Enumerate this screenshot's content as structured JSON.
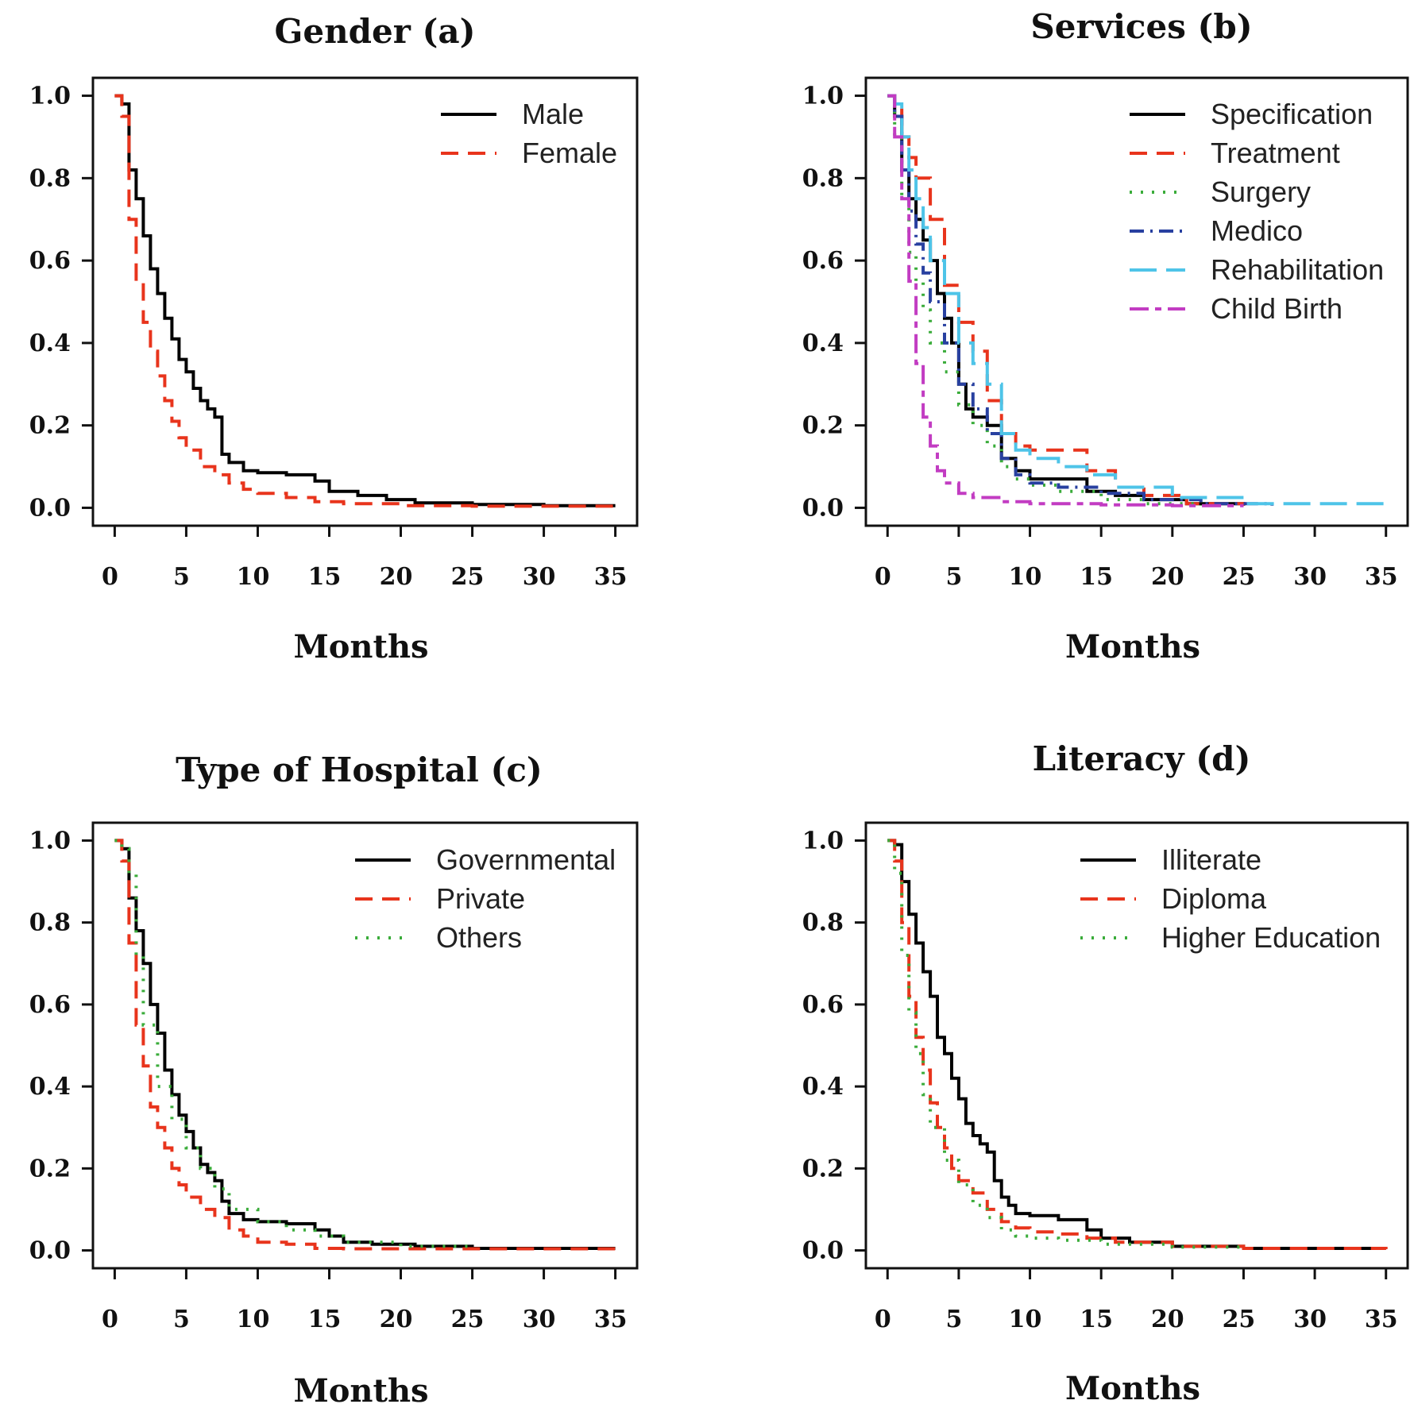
{
  "chart_data": [
    {
      "type": "line",
      "title": "Gender (a)",
      "xlabel": "Months",
      "ylabel": "",
      "xlim": [
        0,
        35
      ],
      "ylim": [
        0,
        1
      ],
      "xticks": [
        "0",
        "5",
        "10",
        "15",
        "20",
        "25",
        "30",
        "35"
      ],
      "yticks": [
        "0.0",
        "0.2",
        "0.4",
        "0.6",
        "0.8",
        "1.0"
      ],
      "legend_position": "top-right",
      "series": [
        {
          "name": "Male",
          "color": "#000000",
          "dash": "solid",
          "x": [
            0,
            0.5,
            1,
            1.5,
            2,
            2.5,
            3,
            3.5,
            4,
            4.5,
            5,
            5.5,
            6,
            6.5,
            7,
            7.5,
            8,
            9,
            10,
            12,
            14,
            15,
            17,
            19,
            21,
            25,
            30,
            35
          ],
          "y": [
            1.0,
            0.98,
            0.82,
            0.75,
            0.66,
            0.58,
            0.52,
            0.46,
            0.41,
            0.36,
            0.33,
            0.29,
            0.26,
            0.24,
            0.22,
            0.13,
            0.11,
            0.09,
            0.085,
            0.08,
            0.065,
            0.04,
            0.03,
            0.02,
            0.012,
            0.008,
            0.005,
            0.005
          ]
        },
        {
          "name": "Female",
          "color": "#e8341c",
          "dash": "dashed",
          "x": [
            0,
            0.5,
            1,
            1.5,
            2,
            2.5,
            3,
            3.5,
            4,
            4.5,
            5,
            6,
            7,
            8,
            9,
            10,
            12,
            14,
            16,
            20,
            25,
            35
          ],
          "y": [
            1.0,
            0.95,
            0.7,
            0.55,
            0.45,
            0.38,
            0.32,
            0.26,
            0.21,
            0.17,
            0.14,
            0.1,
            0.08,
            0.06,
            0.045,
            0.035,
            0.025,
            0.015,
            0.01,
            0.005,
            0.004,
            0.003
          ]
        }
      ]
    },
    {
      "type": "line",
      "title": "Services (b)",
      "xlabel": "Months",
      "ylabel": "",
      "xlim": [
        0,
        35
      ],
      "ylim": [
        0,
        1
      ],
      "xticks": [
        "0",
        "5",
        "10",
        "15",
        "20",
        "25",
        "30",
        "35"
      ],
      "yticks": [
        "0.0",
        "0.2",
        "0.4",
        "0.6",
        "0.8",
        "1.0"
      ],
      "legend_position": "top-right",
      "series": [
        {
          "name": "Specification",
          "color": "#000000",
          "dash": "solid",
          "x": [
            0,
            0.5,
            1,
            1.5,
            2,
            2.5,
            3,
            3.5,
            4,
            4.5,
            5,
            5.5,
            6,
            7,
            8,
            9,
            10,
            12,
            14,
            16,
            18,
            21,
            25
          ],
          "y": [
            1.0,
            0.95,
            0.82,
            0.75,
            0.7,
            0.65,
            0.6,
            0.52,
            0.46,
            0.4,
            0.3,
            0.24,
            0.22,
            0.2,
            0.12,
            0.09,
            0.07,
            0.07,
            0.04,
            0.03,
            0.02,
            0.01,
            0.005
          ]
        },
        {
          "name": "Treatment",
          "color": "#e8341c",
          "dash": "dashed",
          "x": [
            0,
            0.5,
            1,
            1.5,
            2,
            3,
            4,
            5,
            6,
            7,
            8,
            9,
            10,
            12,
            14,
            16,
            18,
            21,
            25
          ],
          "y": [
            1.0,
            0.98,
            0.9,
            0.85,
            0.8,
            0.7,
            0.54,
            0.45,
            0.38,
            0.26,
            0.18,
            0.15,
            0.14,
            0.14,
            0.09,
            0.05,
            0.03,
            0.01,
            0.005
          ]
        },
        {
          "name": "Surgery",
          "color": "#3aac3a",
          "dash": "dotted",
          "x": [
            0,
            0.5,
            1,
            1.5,
            2,
            2.5,
            3,
            4,
            5,
            6,
            7,
            8,
            9,
            10,
            12,
            15,
            18,
            22
          ],
          "y": [
            1.0,
            0.9,
            0.75,
            0.62,
            0.55,
            0.48,
            0.4,
            0.33,
            0.25,
            0.2,
            0.15,
            0.1,
            0.07,
            0.055,
            0.04,
            0.02,
            0.01,
            0.005
          ]
        },
        {
          "name": "Medico",
          "color": "#2840a0",
          "dash": "dashdot",
          "x": [
            0,
            0.5,
            1,
            1.5,
            2,
            2.5,
            3,
            4,
            5,
            6,
            7,
            8,
            9,
            10,
            12,
            15,
            18,
            22,
            27
          ],
          "y": [
            1.0,
            0.95,
            0.82,
            0.72,
            0.64,
            0.57,
            0.5,
            0.4,
            0.3,
            0.24,
            0.18,
            0.12,
            0.08,
            0.06,
            0.05,
            0.035,
            0.02,
            0.01,
            0.005
          ]
        },
        {
          "name": "Rehabilitation",
          "color": "#4ec4e8",
          "dash": "longdash",
          "x": [
            0,
            0.5,
            1,
            1.5,
            2,
            2.5,
            3,
            4,
            5,
            6,
            7,
            8,
            9,
            10,
            12,
            14,
            16,
            20,
            25,
            35
          ],
          "y": [
            1.0,
            0.98,
            0.9,
            0.82,
            0.75,
            0.68,
            0.6,
            0.52,
            0.4,
            0.35,
            0.3,
            0.18,
            0.14,
            0.12,
            0.1,
            0.08,
            0.05,
            0.025,
            0.01,
            0.005
          ]
        },
        {
          "name": "Child Birth",
          "color": "#c23cc2",
          "dash": "twodash",
          "x": [
            0,
            0.5,
            1,
            1.5,
            2,
            2.5,
            3,
            3.5,
            4,
            5,
            6,
            8,
            10,
            15,
            20,
            25
          ],
          "y": [
            1.0,
            0.9,
            0.75,
            0.55,
            0.35,
            0.22,
            0.15,
            0.09,
            0.06,
            0.035,
            0.025,
            0.015,
            0.01,
            0.007,
            0.005,
            0.005
          ]
        }
      ]
    },
    {
      "type": "line",
      "title": "Type of Hospital (c)",
      "xlabel": "Months",
      "ylabel": "",
      "xlim": [
        0,
        35
      ],
      "ylim": [
        0,
        1
      ],
      "xticks": [
        "0",
        "5",
        "10",
        "15",
        "20",
        "25",
        "30",
        "35"
      ],
      "yticks": [
        "0.0",
        "0.2",
        "0.4",
        "0.6",
        "0.8",
        "1.0"
      ],
      "legend_position": "top-right",
      "series": [
        {
          "name": "Governmental",
          "color": "#000000",
          "dash": "solid",
          "x": [
            0,
            0.5,
            1,
            1.5,
            2,
            2.5,
            3,
            3.5,
            4,
            4.5,
            5,
            5.5,
            6,
            6.5,
            7,
            7.5,
            8,
            9,
            10,
            12,
            14,
            15,
            16,
            18,
            21,
            25,
            30,
            35
          ],
          "y": [
            1.0,
            0.98,
            0.86,
            0.78,
            0.7,
            0.6,
            0.53,
            0.44,
            0.38,
            0.33,
            0.29,
            0.25,
            0.21,
            0.19,
            0.17,
            0.12,
            0.09,
            0.075,
            0.07,
            0.065,
            0.05,
            0.035,
            0.02,
            0.015,
            0.01,
            0.005,
            0.005,
            0.005
          ]
        },
        {
          "name": "Private",
          "color": "#e8341c",
          "dash": "dashed",
          "x": [
            0,
            0.5,
            1,
            1.5,
            2,
            2.5,
            3,
            3.5,
            4,
            4.5,
            5,
            6,
            7,
            8,
            9,
            10,
            12,
            14,
            16,
            20,
            25,
            35
          ],
          "y": [
            1.0,
            0.95,
            0.75,
            0.55,
            0.45,
            0.35,
            0.3,
            0.25,
            0.2,
            0.16,
            0.13,
            0.1,
            0.08,
            0.05,
            0.035,
            0.02,
            0.015,
            0.005,
            0.004,
            0.004,
            0.004,
            0.004
          ]
        },
        {
          "name": "Others",
          "color": "#3aac3a",
          "dash": "dotted",
          "x": [
            0,
            0.5,
            1,
            1.5,
            2,
            3,
            4,
            5,
            6,
            7,
            8,
            10,
            12,
            14,
            16,
            20,
            25
          ],
          "y": [
            1.0,
            0.98,
            0.92,
            0.72,
            0.55,
            0.4,
            0.32,
            0.25,
            0.2,
            0.15,
            0.1,
            0.07,
            0.05,
            0.035,
            0.02,
            0.01,
            0.005
          ]
        }
      ]
    },
    {
      "type": "line",
      "title": "Literacy (d)",
      "xlabel": "Months",
      "ylabel": "",
      "xlim": [
        0,
        35
      ],
      "ylim": [
        0,
        1
      ],
      "xticks": [
        "0",
        "5",
        "10",
        "15",
        "20",
        "25",
        "30",
        "35"
      ],
      "yticks": [
        "0.0",
        "0.2",
        "0.4",
        "0.6",
        "0.8",
        "1.0"
      ],
      "legend_position": "top-right",
      "series": [
        {
          "name": "Illiterate",
          "color": "#000000",
          "dash": "solid",
          "x": [
            0,
            0.5,
            1,
            1.5,
            2,
            2.5,
            3,
            3.5,
            4,
            4.5,
            5,
            5.5,
            6,
            6.5,
            7,
            7.5,
            8,
            8.5,
            9,
            10,
            12,
            14,
            15,
            17,
            20,
            25,
            30,
            35
          ],
          "y": [
            1.0,
            0.99,
            0.9,
            0.82,
            0.75,
            0.68,
            0.62,
            0.52,
            0.48,
            0.42,
            0.37,
            0.31,
            0.28,
            0.26,
            0.24,
            0.17,
            0.13,
            0.11,
            0.09,
            0.085,
            0.075,
            0.05,
            0.03,
            0.02,
            0.01,
            0.005,
            0.005,
            0.005
          ]
        },
        {
          "name": "Diploma",
          "color": "#e8341c",
          "dash": "dashed",
          "x": [
            0,
            0.5,
            1,
            1.5,
            2,
            2.5,
            3,
            3.5,
            4,
            4.5,
            5,
            6,
            7,
            8,
            9,
            10,
            12,
            14,
            16,
            20,
            25,
            35
          ],
          "y": [
            1.0,
            0.95,
            0.8,
            0.62,
            0.52,
            0.44,
            0.36,
            0.3,
            0.25,
            0.2,
            0.17,
            0.14,
            0.1,
            0.07,
            0.055,
            0.045,
            0.04,
            0.03,
            0.02,
            0.01,
            0.005,
            0.003
          ]
        },
        {
          "name": "Higher Education",
          "color": "#3aac3a",
          "dash": "dotted",
          "x": [
            0,
            0.5,
            1,
            1.5,
            2,
            2.5,
            3,
            4,
            5,
            6,
            7,
            8,
            9,
            10,
            12,
            15,
            20,
            25
          ],
          "y": [
            1.0,
            0.92,
            0.72,
            0.58,
            0.48,
            0.38,
            0.3,
            0.22,
            0.16,
            0.11,
            0.08,
            0.05,
            0.035,
            0.03,
            0.025,
            0.015,
            0.008,
            0.005
          ]
        }
      ]
    }
  ]
}
